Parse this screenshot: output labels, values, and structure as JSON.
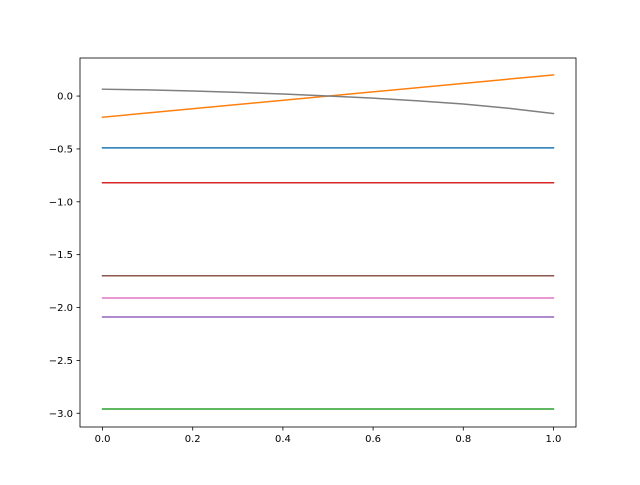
{
  "chart_data": {
    "type": "line",
    "title": "",
    "xlabel": "",
    "ylabel": "",
    "xlim": [
      -0.05,
      1.05
    ],
    "ylim": [
      -3.13,
      0.36
    ],
    "grid": false,
    "legend": "none",
    "x_ticks": [
      0.0,
      0.2,
      0.4,
      0.6,
      0.8,
      1.0
    ],
    "x_tick_labels": [
      "0.0",
      "0.2",
      "0.4",
      "0.6",
      "0.8",
      "1.0"
    ],
    "y_ticks": [
      0.0,
      -0.5,
      -1.0,
      -1.5,
      -2.0,
      -2.5,
      -3.0
    ],
    "y_tick_labels": [
      "0.0",
      "−0.5",
      "−1.0",
      "−1.5",
      "−2.0",
      "−2.5",
      "−3.0"
    ],
    "series": [
      {
        "color": "#1f77b4",
        "x": [
          0,
          1
        ],
        "y": [
          -0.49,
          -0.49
        ]
      },
      {
        "color": "#ff7f0e",
        "x": [
          0,
          1
        ],
        "y": [
          -0.2,
          0.2
        ]
      },
      {
        "color": "#2ca02c",
        "x": [
          0,
          1
        ],
        "y": [
          -2.96,
          -2.96
        ]
      },
      {
        "color": "#d62728",
        "x": [
          0,
          1
        ],
        "y": [
          -0.82,
          -0.82
        ]
      },
      {
        "color": "#9467bd",
        "x": [
          0,
          1
        ],
        "y": [
          -2.09,
          -2.09
        ]
      },
      {
        "color": "#8c564b",
        "x": [
          0,
          1
        ],
        "y": [
          -1.7,
          -1.7
        ]
      },
      {
        "color": "#e377c2",
        "x": [
          0,
          1
        ],
        "y": [
          -1.91,
          -1.91
        ]
      },
      {
        "color": "#7f7f7f",
        "x": [
          0,
          0.1,
          0.2,
          0.3,
          0.4,
          0.5,
          0.6,
          0.7,
          0.8,
          0.9,
          1.0
        ],
        "y": [
          0.065,
          0.058,
          0.048,
          0.035,
          0.019,
          0.0,
          -0.02,
          -0.045,
          -0.075,
          -0.115,
          -0.165
        ]
      }
    ]
  }
}
